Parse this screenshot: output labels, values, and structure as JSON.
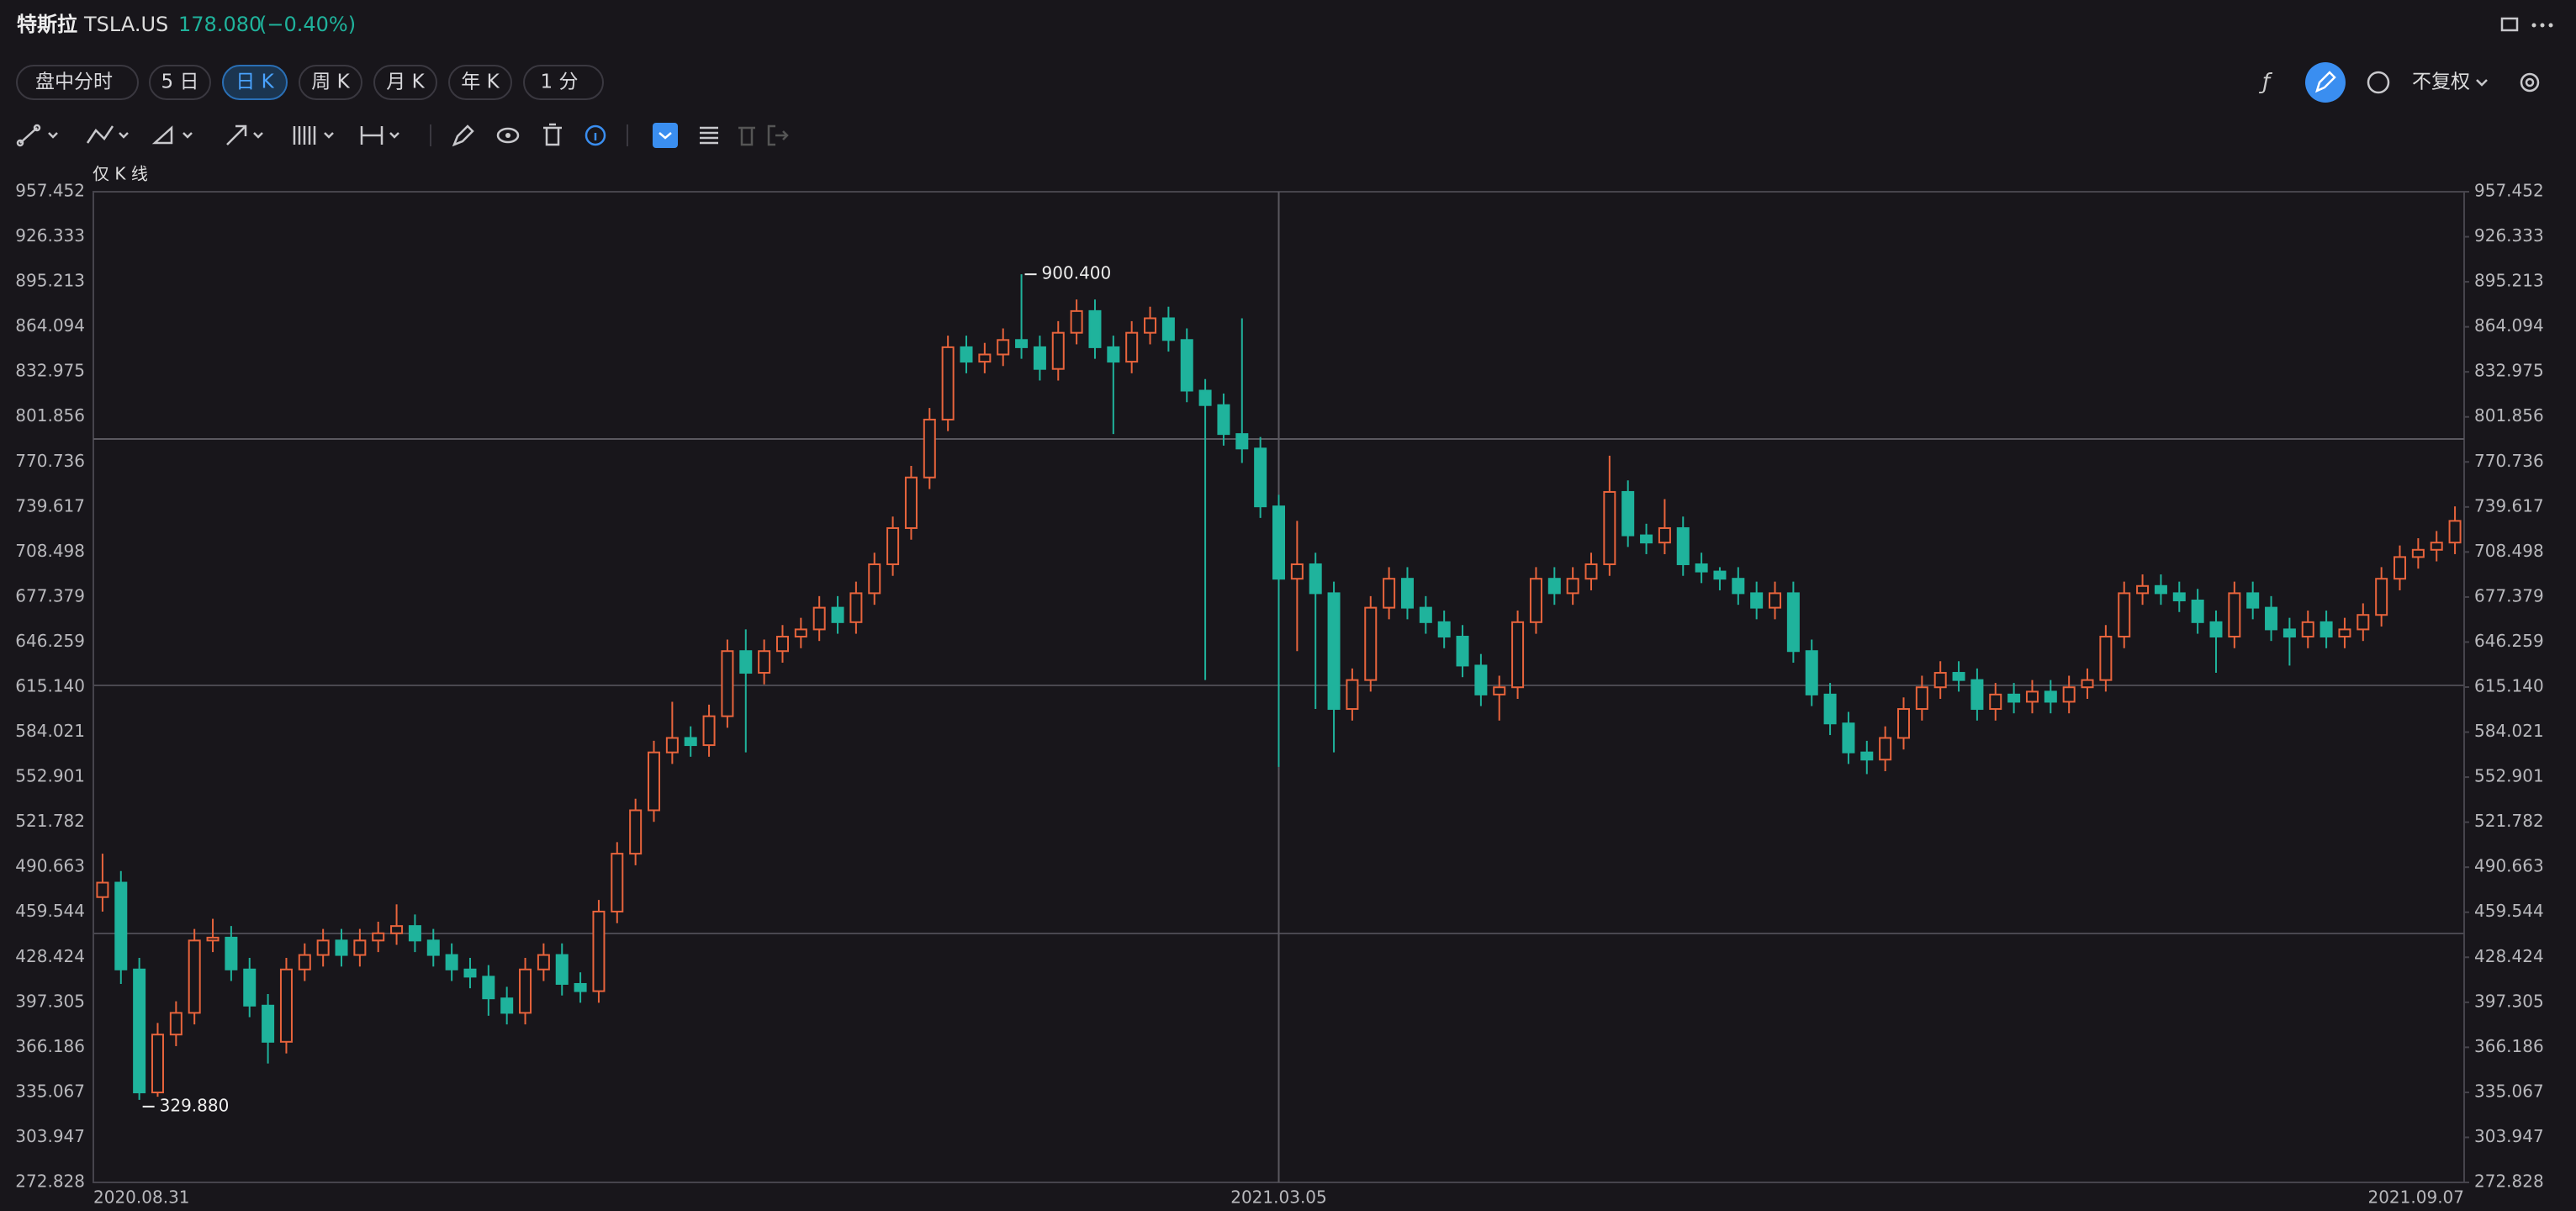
{
  "ui": {
    "name": "特斯拉",
    "symbol": "TSLA.US",
    "price": "178.080",
    "change": "(−0.40%)",
    "tabs": [
      "盘中分时",
      "5 日",
      "日 K",
      "周 K",
      "月 K",
      "年 K",
      "1 分"
    ],
    "adjust": "不复权",
    "series_label": "仅 K 线"
  },
  "chart_data": {
    "type": "candlestick",
    "up_color": "#e8643c",
    "down_color": "#1fb39c",
    "ylim": [
      272.828,
      957.452
    ],
    "yticks": [
      957.452,
      926.333,
      895.213,
      864.094,
      832.975,
      801.856,
      770.736,
      739.617,
      708.498,
      677.379,
      646.259,
      {
        "value": 615.14,
        "label": "615.140"
      },
      584.021,
      552.901,
      521.782,
      490.663,
      459.544,
      428.424,
      397.305,
      366.186,
      335.067,
      303.947,
      272.828
    ],
    "categories": [
      "2020.08.31",
      null,
      null,
      null,
      null,
      null,
      null,
      null,
      null,
      null,
      null,
      null,
      null,
      null,
      null,
      null,
      null,
      null,
      null,
      null,
      null,
      null,
      null,
      null,
      null,
      null,
      null,
      null,
      null,
      null,
      null,
      null,
      null,
      null,
      null,
      null,
      null,
      null,
      null,
      null,
      null,
      null,
      null,
      null,
      null,
      null,
      null,
      null,
      null,
      null,
      null,
      null,
      null,
      null,
      null,
      null,
      null,
      null,
      null,
      null,
      null,
      null,
      null,
      null,
      "2021.03.05",
      null,
      null,
      null,
      null,
      null,
      null,
      null,
      null,
      null,
      null,
      null,
      null,
      null,
      null,
      null,
      null,
      null,
      null,
      null,
      null,
      null,
      null,
      null,
      null,
      null,
      null,
      null,
      null,
      null,
      null,
      null,
      null,
      null,
      null,
      null,
      null,
      null,
      null,
      null,
      null,
      null,
      null,
      null,
      null,
      null,
      null,
      null,
      null,
      null,
      null,
      null,
      null,
      null,
      null,
      null,
      null,
      null,
      null,
      null,
      null,
      null,
      null,
      null,
      "2021.09.07"
    ],
    "ohlc": [
      [
        470,
        500,
        460,
        480
      ],
      [
        480,
        488,
        410,
        420
      ],
      [
        420,
        428,
        329.88,
        335
      ],
      [
        335,
        383,
        332,
        375
      ],
      [
        375,
        398,
        367,
        390
      ],
      [
        390,
        448,
        382,
        440
      ],
      [
        440,
        455,
        432,
        442
      ],
      [
        442,
        450,
        412,
        420
      ],
      [
        420,
        428,
        387,
        395
      ],
      [
        395,
        403,
        355,
        370
      ],
      [
        370,
        428,
        362,
        420
      ],
      [
        420,
        438,
        412,
        430
      ],
      [
        430,
        448,
        422,
        440
      ],
      [
        440,
        448,
        422,
        430
      ],
      [
        430,
        448,
        422,
        440
      ],
      [
        440,
        453,
        432,
        445
      ],
      [
        445,
        465,
        437,
        450
      ],
      [
        450,
        458,
        432,
        440
      ],
      [
        440,
        448,
        422,
        430
      ],
      [
        430,
        438,
        412,
        420
      ],
      [
        420,
        428,
        407,
        415
      ],
      [
        415,
        423,
        388,
        400
      ],
      [
        400,
        408,
        382,
        390
      ],
      [
        390,
        428,
        382,
        420
      ],
      [
        420,
        438,
        412,
        430
      ],
      [
        430,
        438,
        402,
        410
      ],
      [
        410,
        418,
        397,
        405
      ],
      [
        405,
        468,
        397,
        460
      ],
      [
        460,
        508,
        452,
        500
      ],
      [
        500,
        538,
        492,
        530
      ],
      [
        530,
        578,
        522,
        570
      ],
      [
        570,
        605,
        562,
        580
      ],
      [
        580,
        588,
        567,
        575
      ],
      [
        575,
        603,
        567,
        595
      ],
      [
        595,
        648,
        587,
        640
      ],
      [
        640,
        655,
        570,
        625
      ],
      [
        625,
        648,
        617,
        640
      ],
      [
        640,
        658,
        632,
        650
      ],
      [
        650,
        663,
        642,
        655
      ],
      [
        655,
        678,
        647,
        670
      ],
      [
        670,
        678,
        652,
        660
      ],
      [
        660,
        688,
        652,
        680
      ],
      [
        680,
        708,
        672,
        700
      ],
      [
        700,
        733,
        692,
        725
      ],
      [
        725,
        768,
        717,
        760
      ],
      [
        760,
        808,
        752,
        800
      ],
      [
        800,
        858,
        792,
        850
      ],
      [
        850,
        858,
        832,
        840
      ],
      [
        840,
        853,
        832,
        845
      ],
      [
        845,
        863,
        837,
        855
      ],
      [
        855,
        900.4,
        842,
        850
      ],
      [
        850,
        858,
        827,
        835
      ],
      [
        835,
        868,
        827,
        860
      ],
      [
        860,
        883,
        852,
        875
      ],
      [
        875,
        883,
        842,
        850
      ],
      [
        850,
        858,
        790,
        840
      ],
      [
        840,
        868,
        832,
        860
      ],
      [
        860,
        878,
        852,
        870
      ],
      [
        870,
        878,
        847,
        855
      ],
      [
        855,
        863,
        812,
        820
      ],
      [
        820,
        828,
        620,
        810
      ],
      [
        810,
        818,
        782,
        790
      ],
      [
        790,
        870,
        770,
        780
      ],
      [
        780,
        788,
        732,
        740
      ],
      [
        740,
        748,
        560,
        690
      ],
      [
        690,
        730,
        640,
        700
      ],
      [
        700,
        708,
        600,
        680
      ],
      [
        680,
        688,
        570,
        600
      ],
      [
        600,
        628,
        592,
        620
      ],
      [
        620,
        678,
        612,
        670
      ],
      [
        670,
        698,
        662,
        690
      ],
      [
        690,
        698,
        662,
        670
      ],
      [
        670,
        678,
        652,
        660
      ],
      [
        660,
        668,
        642,
        650
      ],
      [
        650,
        658,
        622,
        630
      ],
      [
        630,
        638,
        602,
        610
      ],
      [
        610,
        623,
        592,
        615
      ],
      [
        615,
        668,
        607,
        660
      ],
      [
        660,
        698,
        652,
        690
      ],
      [
        690,
        698,
        672,
        680
      ],
      [
        680,
        698,
        672,
        690
      ],
      [
        690,
        708,
        682,
        700
      ],
      [
        700,
        775,
        692,
        750
      ],
      [
        750,
        758,
        712,
        720
      ],
      [
        720,
        728,
        707,
        715
      ],
      [
        715,
        745,
        707,
        725
      ],
      [
        725,
        733,
        692,
        700
      ],
      [
        700,
        708,
        687,
        695
      ],
      [
        695,
        698,
        682,
        690
      ],
      [
        690,
        698,
        672,
        680
      ],
      [
        680,
        688,
        662,
        670
      ],
      [
        670,
        688,
        662,
        680
      ],
      [
        680,
        688,
        632,
        640
      ],
      [
        640,
        648,
        602,
        610
      ],
      [
        610,
        618,
        582,
        590
      ],
      [
        590,
        598,
        562,
        570
      ],
      [
        570,
        578,
        555,
        565
      ],
      [
        565,
        588,
        557,
        580
      ],
      [
        580,
        608,
        572,
        600
      ],
      [
        600,
        623,
        592,
        615
      ],
      [
        615,
        633,
        607,
        625
      ],
      [
        625,
        633,
        612,
        620
      ],
      [
        620,
        628,
        592,
        600
      ],
      [
        600,
        618,
        592,
        610
      ],
      [
        610,
        618,
        597,
        605
      ],
      [
        605,
        620,
        597,
        612
      ],
      [
        612,
        620,
        597,
        605
      ],
      [
        605,
        623,
        597,
        615
      ],
      [
        615,
        628,
        607,
        620
      ],
      [
        620,
        658,
        612,
        650
      ],
      [
        650,
        688,
        642,
        680
      ],
      [
        680,
        693,
        672,
        685
      ],
      [
        685,
        693,
        672,
        680
      ],
      [
        680,
        688,
        667,
        675
      ],
      [
        675,
        683,
        652,
        660
      ],
      [
        660,
        668,
        625,
        650
      ],
      [
        650,
        688,
        642,
        680
      ],
      [
        680,
        688,
        662,
        670
      ],
      [
        670,
        678,
        647,
        655
      ],
      [
        655,
        663,
        630,
        650
      ],
      [
        650,
        668,
        642,
        660
      ],
      [
        660,
        668,
        642,
        650
      ],
      [
        650,
        663,
        642,
        655
      ],
      [
        655,
        673,
        647,
        665
      ],
      [
        665,
        698,
        657,
        690
      ],
      [
        690,
        713,
        682,
        705
      ],
      [
        705,
        718,
        697,
        710
      ],
      [
        710,
        723,
        702,
        715
      ],
      [
        715,
        740,
        707,
        730
      ]
    ],
    "annotations": [
      {
        "value": 900.4,
        "label": "900.400"
      },
      {
        "value": 329.88,
        "label": "329.880"
      }
    ]
  }
}
